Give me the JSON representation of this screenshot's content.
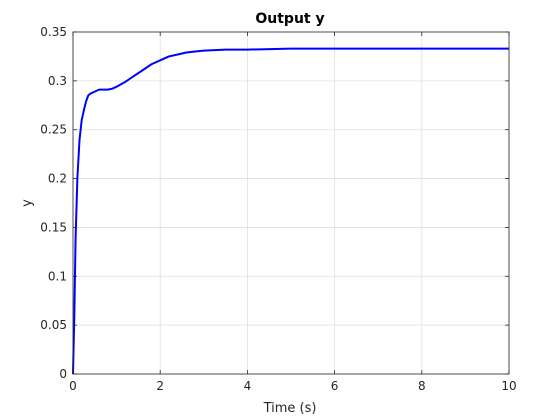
{
  "chart_data": {
    "type": "line",
    "title": "Output y",
    "xlabel": "Time (s)",
    "ylabel": "y",
    "xlim": [
      0,
      10
    ],
    "ylim": [
      0,
      0.35
    ],
    "xticks": [
      0,
      2,
      4,
      6,
      8,
      10
    ],
    "yticks": [
      0,
      0.05,
      0.1,
      0.15,
      0.2,
      0.25,
      0.3,
      0.35
    ],
    "grid": true,
    "legend": "none",
    "series": [
      {
        "color": "#0000ff",
        "x": [
          0,
          0.03,
          0.06,
          0.1,
          0.15,
          0.2,
          0.25,
          0.3,
          0.35,
          0.4,
          0.5,
          0.6,
          0.7,
          0.8,
          0.9,
          1.0,
          1.2,
          1.4,
          1.6,
          1.8,
          2.0,
          2.2,
          2.4,
          2.6,
          2.8,
          3.0,
          3.5,
          4.0,
          5.0,
          6.0,
          8.0,
          10.0
        ],
        "y": [
          0,
          0.06,
          0.14,
          0.2,
          0.24,
          0.26,
          0.27,
          0.279,
          0.285,
          0.287,
          0.289,
          0.291,
          0.291,
          0.291,
          0.292,
          0.294,
          0.299,
          0.305,
          0.311,
          0.317,
          0.321,
          0.325,
          0.327,
          0.329,
          0.33,
          0.331,
          0.332,
          0.332,
          0.333,
          0.333,
          0.333,
          0.333
        ]
      }
    ]
  }
}
